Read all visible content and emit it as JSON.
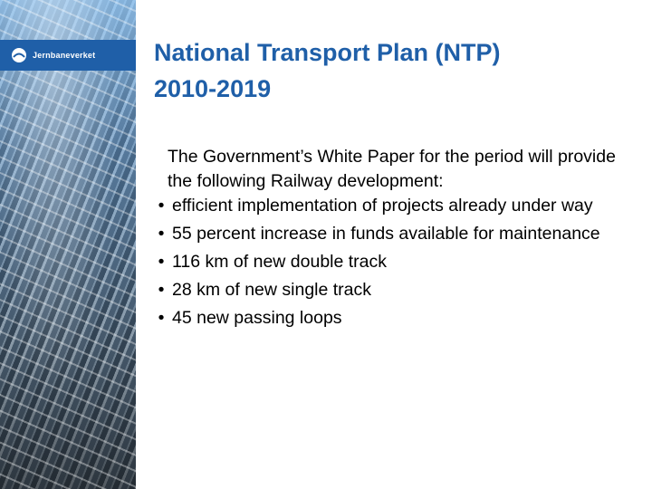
{
  "logo": {
    "text": "Jernbaneverket",
    "icon": "jernbaneverket-logo-icon",
    "bar_color": "#1f5fa8"
  },
  "slide": {
    "title_line1": "National Transport Plan (NTP)",
    "title_line2": "2010-2019",
    "title_color": "#1f5fa8",
    "intro": "The Government’s White Paper for the period will provide the following Railway development:",
    "bullet_symbol": "•",
    "bullets": [
      "efficient implementation of projects already under way",
      "55 percent increase in funds available for maintenance",
      "116 km of new double track",
      "28 km of new single track",
      "45 new passing loops"
    ]
  }
}
